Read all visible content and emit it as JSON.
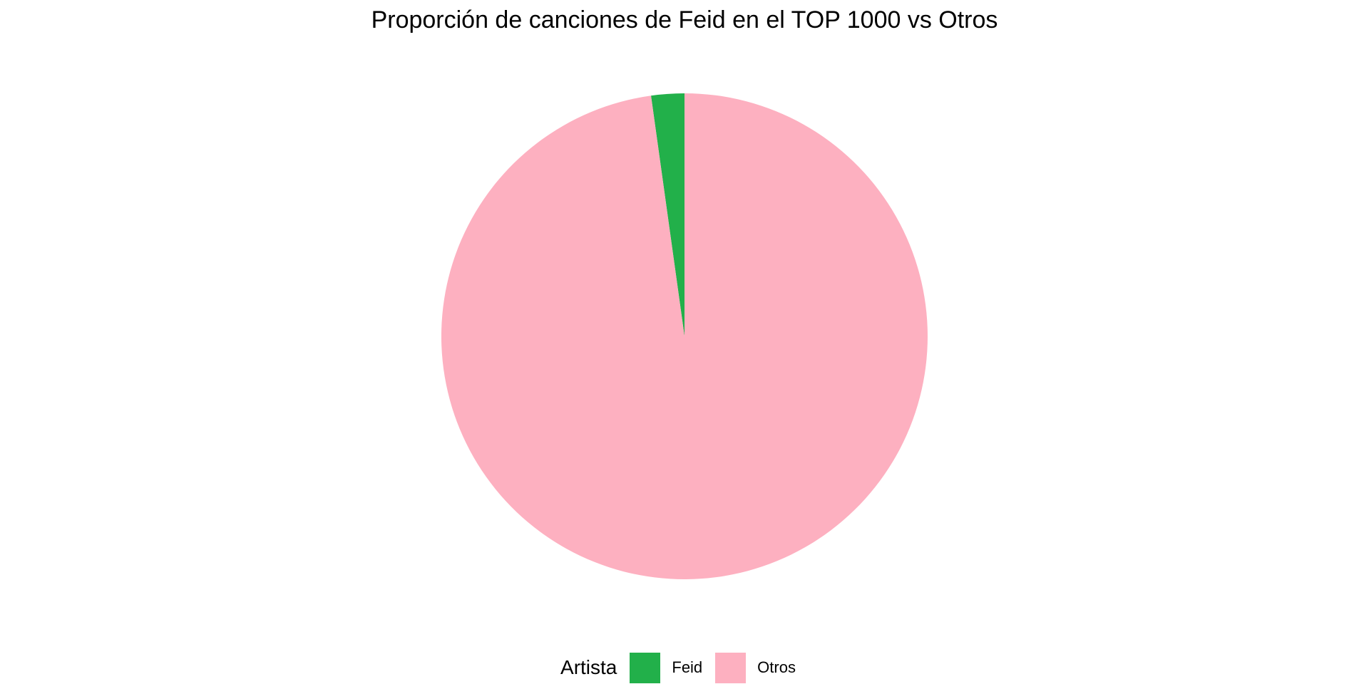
{
  "chart_data": {
    "type": "pie",
    "title": "Proporción de canciones de Feid en el TOP 1000 vs Otros",
    "legend_title": "Artista",
    "legend_placement": "bottom",
    "start_angle": "12 o'clock",
    "direction": "counter-clockwise",
    "slices": [
      {
        "label": "Feid",
        "value": 22,
        "color": "#22b04a"
      },
      {
        "label": "Otros",
        "value": 978,
        "color": "#fdb0c0"
      }
    ]
  }
}
